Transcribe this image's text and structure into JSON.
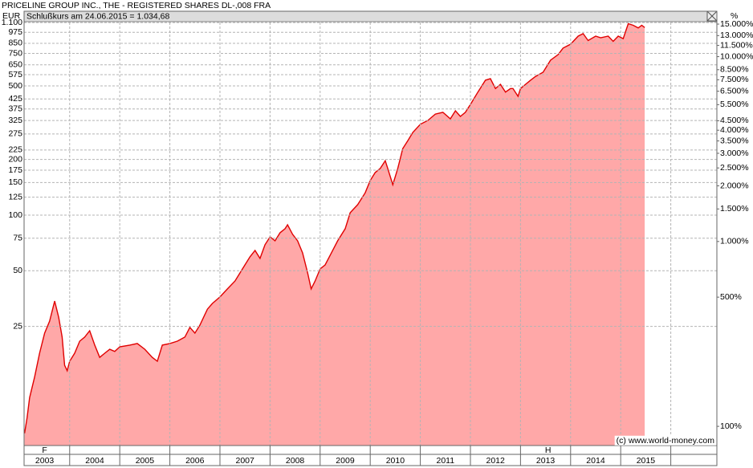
{
  "chart_data": {
    "type": "area",
    "title": "PRICELINE GROUP INC., THE - REGISTERED SHARES DL-,008 FRA",
    "y_axis_label": "EUR",
    "y2_axis_label": "%",
    "header_text": "Schlußkurs am 24.06.2015 = 1.034,68",
    "copyright": "(c) www.world-money.com",
    "log_scale": true,
    "grid": true,
    "color": "#e00000",
    "fill_color": "#ffa8a8",
    "x": [
      2003.1,
      2003.15,
      2003.2,
      2003.3,
      2003.4,
      2003.5,
      2003.6,
      2003.7,
      2003.78,
      2003.85,
      2003.9,
      2003.95,
      2004.0,
      2004.1,
      2004.2,
      2004.3,
      2004.4,
      2004.5,
      2004.6,
      2004.7,
      2004.8,
      2004.9,
      2005.0,
      2005.2,
      2005.35,
      2005.5,
      2005.65,
      2005.75,
      2005.85,
      2006.0,
      2006.15,
      2006.3,
      2006.4,
      2006.5,
      2006.6,
      2006.75,
      2006.85,
      2007.0,
      2007.15,
      2007.3,
      2007.45,
      2007.6,
      2007.7,
      2007.8,
      2007.9,
      2008.0,
      2008.1,
      2008.2,
      2008.3,
      2008.35,
      2008.45,
      2008.55,
      2008.65,
      2008.75,
      2008.82,
      2008.9,
      2009.0,
      2009.1,
      2009.2,
      2009.35,
      2009.5,
      2009.6,
      2009.75,
      2009.9,
      2010.0,
      2010.1,
      2010.2,
      2010.3,
      2010.35,
      2010.45,
      2010.55,
      2010.65,
      2010.75,
      2010.85,
      2011.0,
      2011.15,
      2011.3,
      2011.45,
      2011.6,
      2011.7,
      2011.8,
      2011.9,
      2012.0,
      2012.15,
      2012.3,
      2012.4,
      2012.5,
      2012.6,
      2012.7,
      2012.8,
      2012.85,
      2012.95,
      2013.0,
      2013.1,
      2013.2,
      2013.3,
      2013.45,
      2013.6,
      2013.75,
      2013.85,
      2014.0,
      2014.15,
      2014.25,
      2014.35,
      2014.5,
      2014.6,
      2014.75,
      2014.85,
      2014.95,
      2015.05,
      2015.15,
      2015.25,
      2015.35,
      2015.42,
      2015.48
    ],
    "values": [
      6.6,
      8.0,
      10.3,
      13.3,
      17.9,
      23,
      26.7,
      34.3,
      28,
      21.9,
      15.4,
      14.4,
      16.2,
      17.9,
      20.8,
      21.9,
      23.7,
      19.8,
      17.0,
      17.9,
      18.8,
      18.3,
      19.4,
      19.8,
      20.2,
      18.8,
      17.0,
      16.2,
      19.8,
      20.2,
      20.8,
      21.9,
      24.7,
      23.0,
      25.4,
      31,
      33.3,
      36.1,
      39.9,
      44.0,
      51.2,
      59.5,
      64.4,
      58.3,
      69.1,
      76.3,
      72.6,
      80.3,
      84.4,
      88.7,
      78.7,
      72.6,
      62.5,
      48.7,
      39.9,
      44.0,
      51.2,
      53.8,
      60.7,
      72.6,
      84.4,
      103,
      114,
      132,
      154,
      170,
      179,
      197,
      179,
      146,
      179,
      229,
      253,
      280,
      310,
      325,
      352,
      360,
      332,
      367,
      342,
      360,
      397,
      463,
      537,
      547,
      484,
      510,
      463,
      484,
      484,
      439,
      484,
      510,
      537,
      563,
      593,
      689,
      739,
      801,
      841,
      930,
      959,
      880,
      930,
      911,
      930,
      871,
      930,
      901,
      1086,
      1064,
      1030,
      1064,
      1034.68
    ],
    "xlim": [
      2003.09,
      2016.92
    ],
    "ylim": [
      5.67,
      1102
    ],
    "y2lim": [
      78.75,
      15306
    ],
    "xgrid": [
      2004,
      2005,
      2006,
      2007,
      2008,
      2009,
      2010,
      2011,
      2012,
      2013,
      2014,
      2015,
      2016
    ],
    "xticks": [
      {
        "value": 2003.5,
        "label": "2003"
      },
      {
        "value": 2004.5,
        "label": "2004"
      },
      {
        "value": 2005.5,
        "label": "2005"
      },
      {
        "value": 2006.5,
        "label": "2006"
      },
      {
        "value": 2007.5,
        "label": "2007"
      },
      {
        "value": 2008.5,
        "label": "2008"
      },
      {
        "value": 2009.5,
        "label": "2009"
      },
      {
        "value": 2010.5,
        "label": "2010"
      },
      {
        "value": 2011.5,
        "label": "2011"
      },
      {
        "value": 2012.5,
        "label": "2012"
      },
      {
        "value": 2013.5,
        "label": "2013"
      },
      {
        "value": 2014.5,
        "label": "2014"
      },
      {
        "value": 2015.5,
        "label": "2015"
      }
    ],
    "yticks": [
      {
        "value": 1100,
        "label": "1.100"
      },
      975,
      850,
      750,
      650,
      575,
      500,
      425,
      375,
      325,
      275,
      225,
      200,
      175,
      150,
      125,
      100,
      75,
      50,
      25
    ],
    "y2ticks": [
      {
        "value": 15000,
        "label": "15.000%"
      },
      {
        "value": 13000,
        "label": "13.000%"
      },
      {
        "value": 11500,
        "label": "11.500%"
      },
      {
        "value": 10000,
        "label": "10.000%"
      },
      {
        "value": 8500,
        "label": "8.500%"
      },
      {
        "value": 7500,
        "label": "7.500%"
      },
      {
        "value": 6500,
        "label": "6.500%"
      },
      {
        "value": 5500,
        "label": "5.500%"
      },
      {
        "value": 4500,
        "label": "4.500%"
      },
      {
        "value": 4000,
        "label": "4.000%"
      },
      {
        "value": 3500,
        "label": "3.500%"
      },
      {
        "value": 3000,
        "label": "3.000%"
      },
      {
        "value": 2500,
        "label": "2.500%"
      },
      {
        "value": 2000,
        "label": "2.000%"
      },
      {
        "value": 1500,
        "label": "1.500%"
      },
      {
        "value": 1000,
        "label": "1.000%"
      },
      {
        "value": 500,
        "label": "500%"
      },
      {
        "value": 100,
        "label": "100%"
      }
    ],
    "markers": [
      {
        "label": "F",
        "x": 2003.5
      },
      {
        "label": "H",
        "x": 2013.55
      }
    ]
  }
}
